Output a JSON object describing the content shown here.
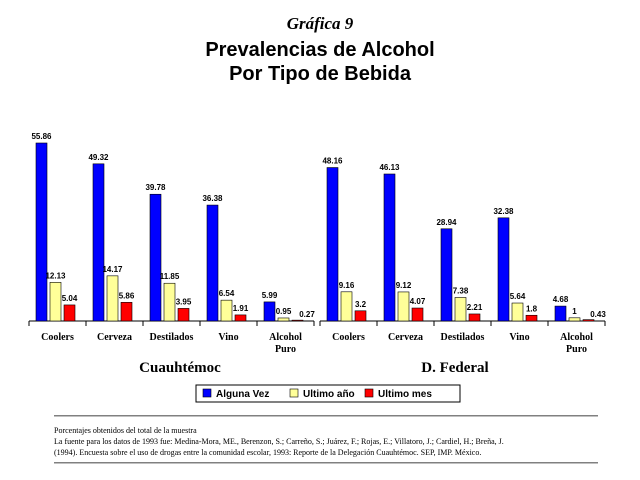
{
  "heading": {
    "grafica": "Gráfica 9",
    "title_line1": "Prevalencias de Alcohol",
    "title_line2": "Por Tipo de Bebida"
  },
  "chart_data": {
    "type": "bar",
    "ylim": [
      0,
      60
    ],
    "grid": false,
    "legend_position": "bottom",
    "colors": [
      "#0000ff",
      "#ffff99",
      "#ff0000"
    ],
    "series_names": [
      "Alguna Vez",
      "Ultimo año",
      "Ultimo mes"
    ],
    "groups": [
      {
        "name": "Cuauhtémoc",
        "categories": [
          "Coolers",
          "Cerveza",
          "Destilados",
          "Vino",
          "Alcohol Puro"
        ],
        "series": [
          {
            "name": "Alguna Vez",
            "values": [
              55.86,
              49.32,
              39.78,
              36.38,
              5.99
            ]
          },
          {
            "name": "Ultimo año",
            "values": [
              12.13,
              14.17,
              11.85,
              6.54,
              0.95
            ]
          },
          {
            "name": "Ultimo mes",
            "values": [
              5.04,
              5.86,
              3.95,
              1.91,
              0.27
            ]
          }
        ]
      },
      {
        "name": "D. Federal",
        "categories": [
          "Coolers",
          "Cerveza",
          "Destilados",
          "Vino",
          "Alcohol Puro"
        ],
        "series": [
          {
            "name": "Alguna Vez",
            "values": [
              48.16,
              46.13,
              28.94,
              32.38,
              4.68
            ]
          },
          {
            "name": "Ultimo año",
            "values": [
              9.16,
              9.12,
              7.38,
              5.64,
              1
            ]
          },
          {
            "name": "Ultimo mes",
            "values": [
              3.2,
              4.07,
              2.21,
              1.8,
              0.43
            ]
          }
        ]
      }
    ],
    "data_labels": [
      [
        [
          "55.86",
          "49.32",
          "39.78",
          "36.38",
          "5.99"
        ],
        [
          "12.13",
          "14.17",
          "11.85",
          "6.54",
          "0.95"
        ],
        [
          "5.04",
          "5.86",
          "3.95",
          "1.91",
          "0.27"
        ]
      ],
      [
        [
          "48.16",
          "46.13",
          "28.94",
          "32.38",
          "4.68"
        ],
        [
          "9.16",
          "9.12",
          "7.38",
          "5.64",
          "1"
        ],
        [
          "3.2",
          "4.07",
          "2.21",
          "1.8",
          "0.43"
        ]
      ]
    ]
  },
  "footnotes": {
    "line1": "Porcentajes obtenidos del total de la muestra",
    "line2": "La fuente para los datos de 1993 fue: Medina-Mora, ME., Berenzon, S.; Carreño, S.; Juárez, F.; Rojas, E.; Villatoro, J.; Cardiel, H.; Breña, J.",
    "line3": "(1994). Encuesta sobre el uso de drogas entre la comunidad escolar, 1993: Reporte de la Delegación Cuauhtémoc. SEP, IMP. México."
  }
}
